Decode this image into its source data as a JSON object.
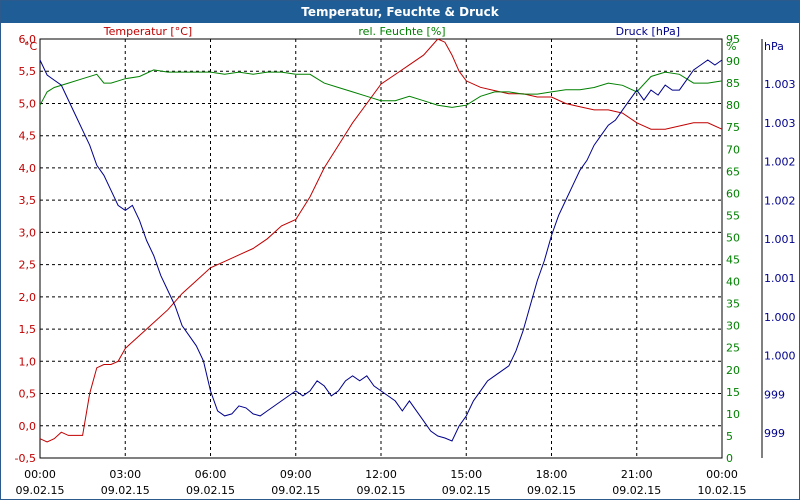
{
  "chart_data": {
    "type": "line",
    "title": "Temperatur, Feuchte & Druck",
    "x_ticks": [
      {
        "time": "00:00",
        "date": "09.02.15"
      },
      {
        "time": "03:00",
        "date": "09.02.15"
      },
      {
        "time": "06:00",
        "date": "09.02.15"
      },
      {
        "time": "09:00",
        "date": "09.02.15"
      },
      {
        "time": "12:00",
        "date": "09.02.15"
      },
      {
        "time": "15:00",
        "date": "09.02.15"
      },
      {
        "time": "18:00",
        "date": "09.02.15"
      },
      {
        "time": "21:00",
        "date": "09.02.15"
      },
      {
        "time": "00:00",
        "date": "10.02.15"
      }
    ],
    "axes": {
      "temperature": {
        "unit": "°C",
        "label": "Temperatur [°C]",
        "color": "#c00000",
        "ylim": [
          -0.5,
          6.0
        ],
        "ticks": [
          "-0,5",
          "0,0",
          "0,5",
          "1,0",
          "1,5",
          "2,0",
          "2,5",
          "3,0",
          "3,5",
          "4,0",
          "4,5",
          "5,0",
          "5,5",
          "6,0"
        ]
      },
      "humidity": {
        "unit": "%",
        "label": "rel. Feuchte [%]",
        "color": "#008000",
        "ylim": [
          0,
          95
        ],
        "ticks": [
          "0",
          "5",
          "10",
          "15",
          "20",
          "25",
          "30",
          "35",
          "40",
          "45",
          "50",
          "55",
          "60",
          "65",
          "70",
          "75",
          "80",
          "85",
          "90",
          "95"
        ]
      },
      "pressure": {
        "unit": "hPa",
        "label": "Druck [hPa]",
        "color": "#00008b",
        "ticks": [
          "999",
          "999",
          "1.000",
          "1.000",
          "1.001",
          "1.001",
          "1.002",
          "1.002",
          "1.003",
          "1.003"
        ]
      }
    },
    "series": [
      {
        "name": "Temperatur [°C]",
        "axis": "temperature",
        "color": "#c00000",
        "x_hours": [
          0,
          0.25,
          0.5,
          0.75,
          1,
          1.25,
          1.5,
          1.75,
          2,
          2.25,
          2.5,
          2.75,
          3,
          3.5,
          4,
          4.5,
          5,
          5.5,
          6,
          6.5,
          7,
          7.5,
          8,
          8.5,
          9,
          9.5,
          10,
          10.5,
          11,
          11.5,
          12,
          12.5,
          13,
          13.5,
          14,
          14.25,
          14.5,
          14.75,
          15,
          15.5,
          16,
          16.5,
          17,
          17.5,
          18,
          18.5,
          19,
          19.5,
          20,
          20.5,
          21,
          21.5,
          22,
          22.5,
          23,
          23.5,
          24
        ],
        "values": [
          -0.2,
          -0.25,
          -0.2,
          -0.1,
          -0.15,
          -0.15,
          -0.15,
          0.5,
          0.9,
          0.95,
          0.95,
          1.0,
          1.2,
          1.4,
          1.6,
          1.8,
          2.05,
          2.25,
          2.45,
          2.55,
          2.65,
          2.75,
          2.9,
          3.1,
          3.2,
          3.55,
          4.0,
          4.35,
          4.7,
          5.0,
          5.3,
          5.45,
          5.6,
          5.75,
          6.0,
          5.95,
          5.75,
          5.5,
          5.35,
          5.25,
          5.2,
          5.15,
          5.15,
          5.1,
          5.1,
          5.0,
          4.95,
          4.9,
          4.9,
          4.85,
          4.7,
          4.6,
          4.6,
          4.65,
          4.7,
          4.7,
          4.6
        ]
      },
      {
        "name": "rel. Feuchte [%]",
        "axis": "humidity",
        "color": "#008000",
        "x_hours": [
          0,
          0.25,
          0.5,
          1,
          1.5,
          2,
          2.25,
          2.5,
          3,
          3.5,
          4,
          4.5,
          5,
          5.5,
          6,
          6.5,
          7,
          7.5,
          8,
          8.5,
          9,
          9.5,
          10,
          10.5,
          11,
          11.5,
          12,
          12.5,
          13,
          13.5,
          14,
          14.5,
          15,
          15.5,
          16,
          16.5,
          17,
          17.5,
          18,
          18.5,
          19,
          19.5,
          20,
          20.5,
          21,
          21.5,
          22,
          22.5,
          23,
          23.5,
          24
        ],
        "values": [
          80,
          83,
          84,
          85,
          86,
          87,
          85,
          85,
          86,
          86.5,
          88,
          87.5,
          87.5,
          87.5,
          87.5,
          87,
          87.5,
          87,
          87.5,
          87.5,
          87,
          87,
          85,
          84,
          83,
          82,
          81,
          81,
          82,
          81,
          80,
          79.5,
          80,
          82,
          83,
          83,
          82.5,
          82.5,
          83,
          83.5,
          83.5,
          84,
          85,
          84.5,
          83,
          86.5,
          87.5,
          87,
          85,
          85,
          85.5
        ]
      },
      {
        "name": "Druck [hPa]",
        "axis": "pressure",
        "color": "#00008b",
        "x_hours": [
          0,
          0.25,
          0.5,
          0.75,
          1,
          1.25,
          1.5,
          1.75,
          2,
          2.25,
          2.5,
          2.75,
          3,
          3.25,
          3.5,
          3.75,
          4,
          4.25,
          4.5,
          4.75,
          5,
          5.25,
          5.5,
          5.75,
          6,
          6.25,
          6.5,
          6.75,
          7,
          7.25,
          7.5,
          7.75,
          8,
          8.25,
          8.5,
          8.75,
          9,
          9.25,
          9.5,
          9.75,
          10,
          10.25,
          10.5,
          10.75,
          11,
          11.25,
          11.5,
          11.75,
          12,
          12.25,
          12.5,
          12.75,
          13,
          13.25,
          13.5,
          13.75,
          14,
          14.25,
          14.5,
          14.75,
          15,
          15.25,
          15.5,
          15.75,
          16,
          16.25,
          16.5,
          16.75,
          17,
          17.25,
          17.5,
          17.75,
          18,
          18.25,
          18.5,
          18.75,
          19,
          19.25,
          19.5,
          19.75,
          20,
          20.25,
          20.5,
          20.75,
          21,
          21.25,
          21.5,
          21.75,
          22,
          22.25,
          22.5,
          22.75,
          23,
          23.25,
          23.5,
          23.75,
          24
        ],
        "values": [
          1003.25,
          1003.1,
          1003.05,
          1003.0,
          1002.85,
          1002.7,
          1002.55,
          1002.4,
          1002.2,
          1002.1,
          1001.95,
          1001.8,
          1001.75,
          1001.8,
          1001.65,
          1001.45,
          1001.3,
          1001.1,
          1000.95,
          1000.8,
          1000.6,
          1000.5,
          1000.4,
          1000.25,
          999.95,
          999.75,
          999.7,
          999.72,
          999.8,
          999.78,
          999.72,
          999.7,
          999.75,
          999.8,
          999.85,
          999.9,
          999.95,
          999.9,
          999.95,
          1000.05,
          1000.0,
          999.9,
          999.95,
          1000.05,
          1000.1,
          1000.05,
          1000.1,
          1000.0,
          999.95,
          999.9,
          999.85,
          999.75,
          999.85,
          999.75,
          999.65,
          999.55,
          999.5,
          999.48,
          999.45,
          999.6,
          999.7,
          999.85,
          999.95,
          1000.05,
          1000.1,
          1000.15,
          1000.2,
          1000.35,
          1000.55,
          1000.8,
          1001.05,
          1001.25,
          1001.5,
          1001.7,
          1001.85,
          1002.0,
          1002.15,
          1002.25,
          1002.4,
          1002.5,
          1002.6,
          1002.65,
          1002.75,
          1002.85,
          1002.95,
          1002.85,
          1002.95,
          1002.9,
          1003.0,
          1002.95,
          1002.95,
          1003.05,
          1003.15,
          1003.2,
          1003.25,
          1003.2,
          1003.25
        ]
      }
    ],
    "grid": true
  }
}
